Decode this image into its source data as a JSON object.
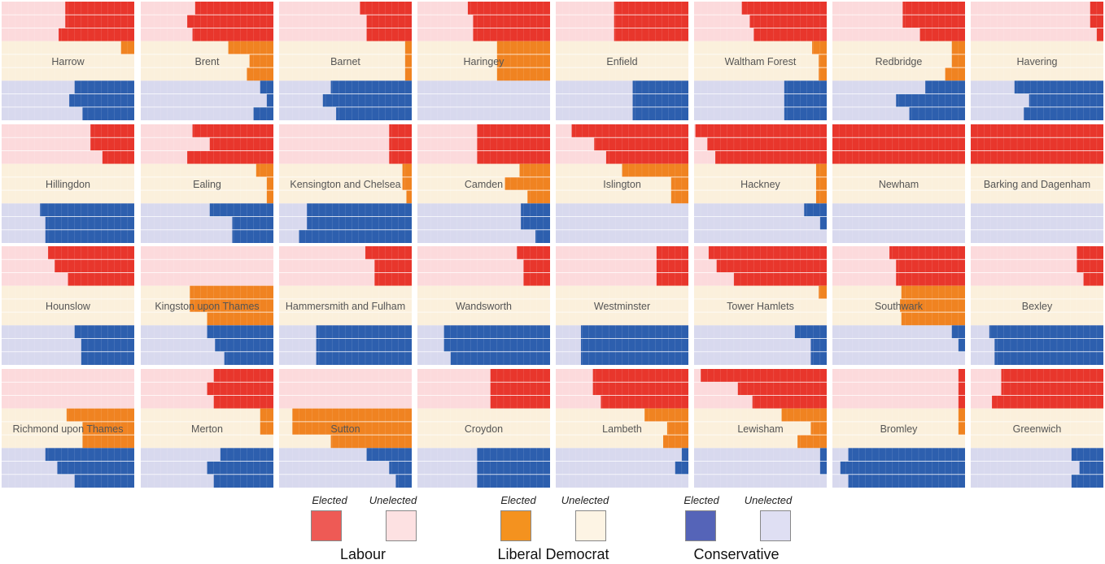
{
  "colors": {
    "lab_elected": "#e8362c",
    "lab_unelected": "#fcdadc",
    "ld_elected": "#f08321",
    "ld_unelected": "#fbf0dc",
    "con_elected": "#2d5fae",
    "con_unelected": "#d8d9ee",
    "legend_lab_elected": "#ee5a55",
    "legend_lab_unelected": "#fde1e2",
    "legend_ld_elected": "#f4921f",
    "legend_ld_unelected": "#fdf4e4",
    "legend_con_elected": "#5564b8",
    "legend_con_unelected": "#dfdff3"
  },
  "legend": {
    "elected_label": "Elected",
    "unelected_label": "Unelected",
    "parties": [
      "Labour",
      "Liberal Democrat",
      "Conservative"
    ]
  },
  "chart_data": {
    "type": "bar",
    "layout": "small-multiples 4x8",
    "bars_per_party": 3,
    "value_scale": "fraction of panel width (0-1), bars extend from the right edge",
    "series_order": [
      "Labour",
      "Liberal Democrat",
      "Conservative"
    ],
    "boroughs": [
      {
        "name": "Harrow",
        "lab": [
          0.52,
          0.52,
          0.57
        ],
        "ld": [
          0.1
        ],
        "con": [
          0.45,
          0.49,
          0.39
        ]
      },
      {
        "name": "Brent",
        "lab": [
          0.59,
          0.65,
          0.61
        ],
        "ld": [
          0.34,
          0.18,
          0.2
        ],
        "con": [
          0.1,
          0.05,
          0.15
        ]
      },
      {
        "name": "Barnet",
        "lab": [
          0.39,
          0.34,
          0.34
        ],
        "ld": [
          0.05,
          0.05,
          0.05
        ],
        "con": [
          0.61,
          0.67,
          0.57
        ]
      },
      {
        "name": "Haringey",
        "lab": [
          0.62,
          0.58,
          0.58
        ],
        "ld": [
          0.4,
          0.4,
          0.4
        ],
        "con": []
      },
      {
        "name": "Enfield",
        "lab": [
          0.56,
          0.56,
          0.56
        ],
        "ld": [],
        "con": [
          0.42,
          0.42,
          0.42
        ]
      },
      {
        "name": "Waltham Forest",
        "lab": [
          0.64,
          0.58,
          0.55
        ],
        "ld": [
          0.11,
          0.06,
          0.06
        ],
        "con": [
          0.32,
          0.32,
          0.32
        ]
      },
      {
        "name": "Redbridge",
        "lab": [
          0.47,
          0.47,
          0.34
        ],
        "ld": [
          0.1,
          0.1,
          0.15
        ],
        "con": [
          0.3,
          0.52,
          0.42
        ]
      },
      {
        "name": "Havering",
        "lab": [
          0.1,
          0.1,
          0.05
        ],
        "ld": [
          0.0
        ],
        "con": [
          0.67,
          0.56,
          0.6
        ]
      },
      {
        "name": "Hillingdon",
        "lab": [
          0.33,
          0.33,
          0.24
        ],
        "ld": [],
        "con": [
          0.71,
          0.67,
          0.67
        ]
      },
      {
        "name": "Ealing",
        "lab": [
          0.61,
          0.48,
          0.65
        ],
        "ld": [
          0.13,
          0.05,
          0.05
        ],
        "con": [
          0.48,
          0.31,
          0.31
        ]
      },
      {
        "name": "Kensington and Chelsea",
        "lab": [
          0.17,
          0.17,
          0.17
        ],
        "ld": [
          0.07,
          0.07,
          0.04
        ],
        "con": [
          0.79,
          0.79,
          0.85
        ]
      },
      {
        "name": "Camden",
        "lab": [
          0.55,
          0.55,
          0.55
        ],
        "ld": [
          0.23,
          0.34,
          0.17
        ],
        "con": [
          0.22,
          0.22,
          0.11
        ]
      },
      {
        "name": "Islington",
        "lab": [
          0.88,
          0.71,
          0.62
        ],
        "ld": [
          0.5,
          0.13,
          0.13
        ],
        "con": []
      },
      {
        "name": "Hackney",
        "lab": [
          0.99,
          0.9,
          0.84
        ],
        "ld": [
          0.08,
          0.08,
          0.08
        ],
        "con": [
          0.17,
          0.05
        ]
      },
      {
        "name": "Newham",
        "lab": [
          1.0,
          1.0,
          1.0
        ],
        "ld": [],
        "con": []
      },
      {
        "name": "Barking and Dagenham",
        "lab": [
          1.0,
          1.0,
          1.0
        ],
        "ld": [],
        "con": []
      },
      {
        "name": "Hounslow",
        "lab": [
          0.65,
          0.6,
          0.5
        ],
        "ld": [],
        "con": [
          0.45,
          0.4,
          0.4
        ]
      },
      {
        "name": "Kingston upon Thames",
        "lab": [],
        "ld": [
          0.63,
          0.63,
          0.5
        ],
        "con": [
          0.5,
          0.44,
          0.37
        ]
      },
      {
        "name": "Hammersmith and Fulham",
        "lab": [
          0.35,
          0.28,
          0.28
        ],
        "ld": [],
        "con": [
          0.72,
          0.72,
          0.72
        ]
      },
      {
        "name": "Wandsworth",
        "lab": [
          0.25,
          0.2,
          0.2
        ],
        "ld": [],
        "con": [
          0.8,
          0.8,
          0.75
        ]
      },
      {
        "name": "Westminster",
        "lab": [
          0.24,
          0.24,
          0.24
        ],
        "ld": [],
        "con": [
          0.81,
          0.81,
          0.81
        ]
      },
      {
        "name": "Tower Hamlets",
        "lab": [
          0.89,
          0.83,
          0.7
        ],
        "ld": [
          0.06
        ],
        "con": [
          0.24,
          0.12,
          0.12
        ]
      },
      {
        "name": "Southwark",
        "lab": [
          0.57,
          0.52,
          0.52
        ],
        "ld": [
          0.48,
          0.49,
          0.48
        ],
        "con": [
          0.1,
          0.05
        ]
      },
      {
        "name": "Bexley",
        "lab": [
          0.2,
          0.2,
          0.15
        ],
        "ld": [],
        "con": [
          0.86,
          0.82,
          0.82
        ]
      },
      {
        "name": "Richmond upon Thames",
        "lab": [],
        "ld": [
          0.51,
          0.39,
          0.39
        ],
        "con": [
          0.67,
          0.58,
          0.45
        ]
      },
      {
        "name": "Merton",
        "lab": [
          0.45,
          0.5,
          0.45
        ],
        "ld": [
          0.1,
          0.1
        ],
        "con": [
          0.4,
          0.5,
          0.45
        ]
      },
      {
        "name": "Sutton",
        "lab": [],
        "ld": [
          0.9,
          0.9,
          0.61
        ],
        "con": [
          0.34,
          0.17,
          0.12
        ]
      },
      {
        "name": "Croydon",
        "lab": [
          0.45,
          0.45,
          0.45
        ],
        "ld": [],
        "con": [
          0.55,
          0.55,
          0.55
        ]
      },
      {
        "name": "Lambeth",
        "lab": [
          0.72,
          0.72,
          0.66
        ],
        "ld": [
          0.33,
          0.16,
          0.19
        ],
        "con": [
          0.05,
          0.1
        ]
      },
      {
        "name": "Lewisham",
        "lab": [
          0.95,
          0.67,
          0.56
        ],
        "ld": [
          0.34,
          0.12,
          0.22
        ],
        "con": [
          0.05,
          0.05
        ]
      },
      {
        "name": "Bromley",
        "lab": [
          0.05,
          0.05,
          0.05
        ],
        "ld": [
          0.05,
          0.05
        ],
        "con": [
          0.88,
          0.94,
          0.88
        ]
      },
      {
        "name": "Greenwich",
        "lab": [
          0.77,
          0.77,
          0.84
        ],
        "ld": [],
        "con": [
          0.24,
          0.18,
          0.24
        ]
      }
    ]
  }
}
